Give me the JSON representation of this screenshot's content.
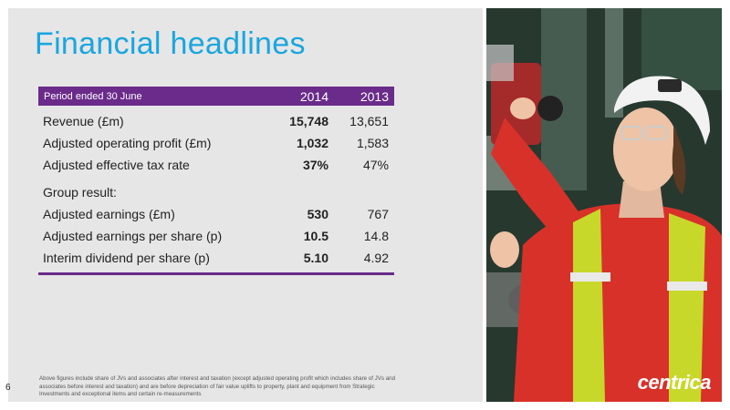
{
  "slide": {
    "title": "Financial headlines",
    "page_number": "6",
    "footnote": "Above figures include share of JVs and associates after interest and taxation (except adjusted operating profit which includes share of JVs and associates before interest and taxation) and are before depreciation of fair value uplifts to property, plant and equipment from Strategic Investments and exceptional items and certain re-measurements"
  },
  "table": {
    "header": {
      "period": "Period ended 30 June",
      "year1": "2014",
      "year2": "2013"
    },
    "rows": [
      {
        "label": "Revenue (£m)",
        "v2014": "15,748",
        "v2013": "13,651"
      },
      {
        "label": "Adjusted operating profit (£m)",
        "v2014": "1,032",
        "v2013": "1,583"
      },
      {
        "label": "Adjusted effective tax rate",
        "v2014": "37%",
        "v2013": "47%"
      }
    ],
    "group_heading": "Group result:",
    "group_rows": [
      {
        "label": "Adjusted earnings (£m)",
        "v2014": "530",
        "v2013": "767"
      },
      {
        "label": "Adjusted earnings per share (p)",
        "v2014": "10.5",
        "v2013": "14.8"
      },
      {
        "label": "Interim dividend per share (p)",
        "v2014": "5.10",
        "v2013": "4.92"
      }
    ]
  },
  "photo": {
    "logo_text": "centrica",
    "accent_colors": {
      "jacket": "#d8312a",
      "hivis": "#c8d82a",
      "helmet": "#f2f2f2"
    }
  },
  "colors": {
    "title": "#1aa6df",
    "header_bg": "#6a2b8a",
    "panel_bg": "#e6e6e6"
  }
}
